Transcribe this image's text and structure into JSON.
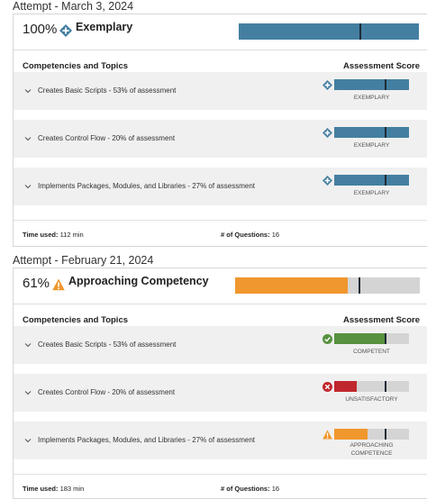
{
  "colors": {
    "exemplary": "#447fa1",
    "approaching": "#f0972e",
    "competent": "#57923f",
    "unsatisfactory": "#c0272d",
    "track": "#d4d4d4",
    "marker": "#1c2b36"
  },
  "labels": {
    "competencies_and_topics": "Competencies and Topics",
    "assessment_score": "Assessment Score",
    "time_used": "Time used:",
    "num_questions": "# of Questions:"
  },
  "attempts": [
    {
      "heading": "Attempt - March 3, 2024",
      "percent": "100%",
      "level": "Exemplary",
      "level_icon": "diamond-plus-icon",
      "overall_fill": 1.0,
      "overall_marker": 0.67,
      "topics": [
        {
          "label": "Creates Basic Scripts - 53% of assessment",
          "score_label": "EXEMPLARY",
          "score_icon": "diamond-plus-icon",
          "fill": 1.0,
          "marker": 0.67
        },
        {
          "label": "Creates Control Flow - 20% of assessment",
          "score_label": "EXEMPLARY",
          "score_icon": "diamond-plus-icon",
          "fill": 1.0,
          "marker": 0.67
        },
        {
          "label": "Implements Packages, Modules, and Libraries - 27% of assessment",
          "score_label": "EXEMPLARY",
          "score_icon": "diamond-plus-icon",
          "fill": 1.0,
          "marker": 0.67
        }
      ],
      "time_used": "112 min",
      "num_questions": "16"
    },
    {
      "heading": "Attempt - February 21, 2024",
      "percent": "61%",
      "level": "Approaching Competency",
      "level_icon": "warning-triangle-icon",
      "overall_fill": 0.61,
      "overall_marker": 0.67,
      "topics": [
        {
          "label": "Creates Basic Scripts - 53% of assessment",
          "score_label": "COMPETENT",
          "score_icon": "check-circle-icon",
          "fill": 0.67,
          "marker": 0.67
        },
        {
          "label": "Creates Control Flow - 20% of assessment",
          "score_label": "UNSATISFACTORY",
          "score_icon": "x-circle-icon",
          "fill": 0.3,
          "marker": 0.67
        },
        {
          "label": "Implements Packages, Modules, and Libraries - 27% of assessment",
          "score_label": "APPROACHING COMPETENCE",
          "score_icon": "warning-triangle-icon",
          "fill": 0.45,
          "marker": 0.67
        }
      ],
      "time_used": "183 min",
      "num_questions": "16"
    }
  ]
}
